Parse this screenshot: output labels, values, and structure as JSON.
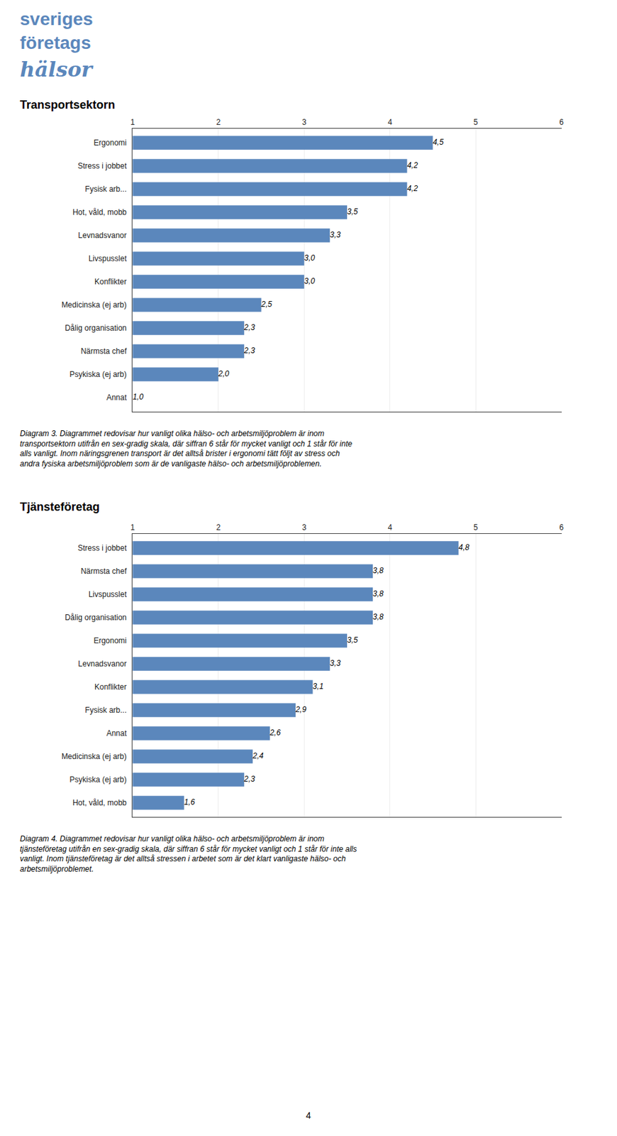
{
  "chart_data": [
    {
      "type": "bar",
      "title": "Transportsektorn",
      "orientation": "horizontal",
      "categories": [
        "Ergonomi",
        "Stress i jobbet",
        "Fysisk arb...",
        "Hot, våld, mobb",
        "Levnadsvanor",
        "Livspusslet",
        "Konflikter",
        "Medicinska (ej arb)",
        "Dålig organisation",
        "Närmsta chef",
        "Psykiska (ej arb)",
        "Annat"
      ],
      "values": [
        4.5,
        4.2,
        4.2,
        3.5,
        3.3,
        3.0,
        3.0,
        2.5,
        2.3,
        2.3,
        2.0,
        1.0
      ],
      "value_labels": [
        "4,5",
        "4,2",
        "4,2",
        "3,5",
        "3,3",
        "3,0",
        "3,0",
        "2,5",
        "2,3",
        "2,3",
        "2,0",
        "1,0"
      ],
      "data_labels": true,
      "color": "#5b87bc",
      "xlim": [
        1,
        6
      ],
      "xticks": [
        1,
        2,
        3,
        4,
        5,
        6
      ],
      "grid": true,
      "annotations": [
        "Diagram 3. Diagrammet redovisar hur vanligt olika hälso- och arbetsmiljöproblem är inom",
        "transportsektorn utifrån en sex-gradig skala, där siffran 6 står för mycket vanligt och 1 står för inte",
        "alls vanligt. Inom näringsgrenen transport är det alltså brister i ergonomi tätt följt av stress och",
        "andra fysiska arbetsmiljöproblem som är de vanligaste hälso- och arbetsmiljöproblemen."
      ]
    },
    {
      "type": "bar",
      "title": "Tjänsteföretag",
      "orientation": "horizontal",
      "categories": [
        "Stress i jobbet",
        "Närmsta chef",
        "Livspusslet",
        "Dålig organisation",
        "Ergonomi",
        "Levnadsvanor",
        "Konflikter",
        "Fysisk arb...",
        "Annat",
        "Medicinska (ej arb)",
        "Psykiska (ej arb)",
        "Hot, våld, mobb"
      ],
      "values": [
        4.8,
        3.8,
        3.8,
        3.8,
        3.5,
        3.3,
        3.1,
        2.9,
        2.6,
        2.4,
        2.3,
        1.6
      ],
      "value_labels": [
        "4,8",
        "3,8",
        "3,8",
        "3,8",
        "3,5",
        "3,3",
        "3,1",
        "2,9",
        "2,6",
        "2,4",
        "2,3",
        "1,6"
      ],
      "data_labels": true,
      "color": "#5b87bc",
      "xlim": [
        1,
        6
      ],
      "xticks": [
        1,
        2,
        3,
        4,
        5,
        6
      ],
      "grid": true,
      "annotations": [
        "Diagram 4. Diagrammet redovisar hur vanligt olika hälso- och arbetsmiljöproblem är inom",
        "tjänsteföretag utifrån en sex-gradig skala, där siffran 6 står för mycket vanligt och 1 står för inte alls",
        "vanligt. Inom tjänsteföretag är det alltså stressen i arbetet som är det klart vanligaste hälso- och",
        "arbetsmiljöproblemet."
      ]
    }
  ],
  "annotations": [
    "sveriges",
    "företags",
    "hälsor",
    "4"
  ]
}
